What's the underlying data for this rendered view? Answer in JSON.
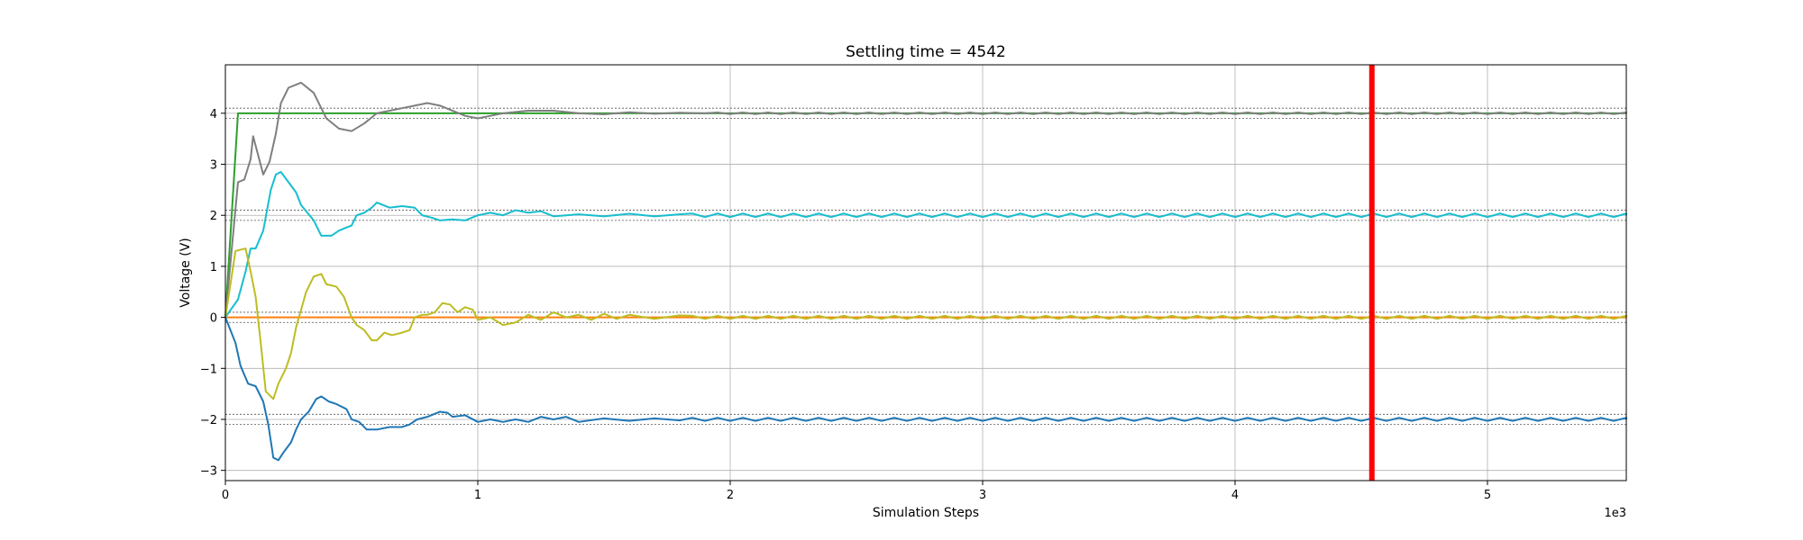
{
  "chart_data": {
    "type": "line",
    "title": "Settling time = 4542",
    "xlabel": "Simulation Steps",
    "ylabel": "Voltage (V)",
    "x_offset_label": "1e3",
    "xlim": [
      0,
      5.55
    ],
    "ylim": [
      -3.2,
      4.95
    ],
    "xticks": [
      0,
      1,
      2,
      3,
      4,
      5
    ],
    "xtick_labels": [
      "0",
      "1",
      "2",
      "3",
      "4",
      "5"
    ],
    "yticks": [
      -3,
      -2,
      -1,
      0,
      1,
      2,
      3,
      4
    ],
    "ytick_labels": [
      "−3",
      "−2",
      "−1",
      "0",
      "1",
      "2",
      "3",
      "4"
    ],
    "grid": true,
    "settling_time": 4.542,
    "settling_color": "#ff0000",
    "targets": [
      4,
      2,
      0,
      -2
    ],
    "tolerance_band": 0.1,
    "series": [
      {
        "color": "#2ca02c",
        "style": "step",
        "points": [
          [
            0,
            0
          ],
          [
            0.05,
            4
          ],
          [
            5.55,
            4
          ]
        ]
      },
      {
        "color": "#ff7f0e",
        "style": "step",
        "points": [
          [
            0,
            0
          ],
          [
            5.55,
            0
          ]
        ]
      },
      {
        "color": "#7f7f7f",
        "style": "oscillating",
        "points": [
          [
            0,
            0
          ],
          [
            0.05,
            2.65
          ],
          [
            0.075,
            2.7
          ],
          [
            0.1,
            3.1
          ],
          [
            0.11,
            3.55
          ],
          [
            0.15,
            2.8
          ],
          [
            0.175,
            3.05
          ],
          [
            0.2,
            3.6
          ],
          [
            0.22,
            4.2
          ],
          [
            0.25,
            4.5
          ],
          [
            0.3,
            4.6
          ],
          [
            0.35,
            4.4
          ],
          [
            0.4,
            3.9
          ],
          [
            0.45,
            3.7
          ],
          [
            0.5,
            3.65
          ],
          [
            0.55,
            3.8
          ],
          [
            0.6,
            4.0
          ],
          [
            0.7,
            4.1
          ],
          [
            0.75,
            4.15
          ],
          [
            0.8,
            4.2
          ],
          [
            0.85,
            4.15
          ],
          [
            0.9,
            4.05
          ],
          [
            0.95,
            3.95
          ],
          [
            1.0,
            3.9
          ],
          [
            1.05,
            3.95
          ],
          [
            1.1,
            4.0
          ],
          [
            1.2,
            4.05
          ],
          [
            1.3,
            4.05
          ],
          [
            1.4,
            4.0
          ],
          [
            1.5,
            3.98
          ],
          [
            1.6,
            4.02
          ],
          [
            1.7,
            3.99
          ],
          [
            1.8,
            4.01
          ],
          [
            1.9,
            4.0
          ],
          [
            5.55,
            4.0
          ]
        ],
        "settle_value": 4,
        "ripple": 0.015
      },
      {
        "color": "#17becf",
        "style": "oscillating",
        "points": [
          [
            0,
            0
          ],
          [
            0.05,
            0.35
          ],
          [
            0.08,
            0.9
          ],
          [
            0.1,
            1.35
          ],
          [
            0.12,
            1.35
          ],
          [
            0.15,
            1.7
          ],
          [
            0.18,
            2.5
          ],
          [
            0.2,
            2.8
          ],
          [
            0.22,
            2.85
          ],
          [
            0.25,
            2.65
          ],
          [
            0.28,
            2.45
          ],
          [
            0.3,
            2.2
          ],
          [
            0.35,
            1.9
          ],
          [
            0.38,
            1.6
          ],
          [
            0.42,
            1.6
          ],
          [
            0.45,
            1.7
          ],
          [
            0.5,
            1.8
          ],
          [
            0.52,
            2.0
          ],
          [
            0.55,
            2.05
          ],
          [
            0.58,
            2.15
          ],
          [
            0.6,
            2.25
          ],
          [
            0.65,
            2.15
          ],
          [
            0.7,
            2.18
          ],
          [
            0.75,
            2.15
          ],
          [
            0.78,
            2.0
          ],
          [
            0.82,
            1.95
          ],
          [
            0.85,
            1.9
          ],
          [
            0.9,
            1.92
          ],
          [
            0.95,
            1.9
          ],
          [
            1.0,
            2.0
          ],
          [
            1.05,
            2.05
          ],
          [
            1.1,
            2.0
          ],
          [
            1.15,
            2.1
          ],
          [
            1.2,
            2.05
          ],
          [
            1.25,
            2.08
          ],
          [
            1.3,
            1.98
          ],
          [
            1.4,
            2.02
          ],
          [
            1.5,
            1.98
          ],
          [
            1.6,
            2.03
          ],
          [
            1.7,
            1.98
          ],
          [
            1.8,
            2.02
          ],
          [
            5.55,
            2.0
          ]
        ],
        "settle_value": 2,
        "ripple": 0.035
      },
      {
        "color": "#bcbd22",
        "style": "oscillating",
        "points": [
          [
            0,
            0
          ],
          [
            0.04,
            1.3
          ],
          [
            0.08,
            1.35
          ],
          [
            0.1,
            0.9
          ],
          [
            0.12,
            0.4
          ],
          [
            0.14,
            -0.5
          ],
          [
            0.16,
            -1.45
          ],
          [
            0.19,
            -1.6
          ],
          [
            0.21,
            -1.3
          ],
          [
            0.24,
            -1.0
          ],
          [
            0.26,
            -0.7
          ],
          [
            0.28,
            -0.2
          ],
          [
            0.3,
            0.15
          ],
          [
            0.32,
            0.5
          ],
          [
            0.35,
            0.8
          ],
          [
            0.38,
            0.85
          ],
          [
            0.4,
            0.65
          ],
          [
            0.44,
            0.6
          ],
          [
            0.47,
            0.4
          ],
          [
            0.5,
            0.0
          ],
          [
            0.52,
            -0.15
          ],
          [
            0.55,
            -0.25
          ],
          [
            0.58,
            -0.45
          ],
          [
            0.6,
            -0.45
          ],
          [
            0.63,
            -0.3
          ],
          [
            0.66,
            -0.35
          ],
          [
            0.7,
            -0.3
          ],
          [
            0.73,
            -0.25
          ],
          [
            0.75,
            0.0
          ],
          [
            0.78,
            0.05
          ],
          [
            0.8,
            0.05
          ],
          [
            0.83,
            0.1
          ],
          [
            0.86,
            0.28
          ],
          [
            0.89,
            0.25
          ],
          [
            0.92,
            0.1
          ],
          [
            0.95,
            0.2
          ],
          [
            0.98,
            0.15
          ],
          [
            1.0,
            -0.05
          ],
          [
            1.05,
            0.0
          ],
          [
            1.1,
            -0.15
          ],
          [
            1.15,
            -0.1
          ],
          [
            1.2,
            0.05
          ],
          [
            1.25,
            -0.05
          ],
          [
            1.3,
            0.1
          ],
          [
            1.35,
            0.0
          ],
          [
            1.4,
            0.05
          ],
          [
            1.45,
            -0.05
          ],
          [
            1.5,
            0.07
          ],
          [
            1.55,
            -0.03
          ],
          [
            1.6,
            0.05
          ],
          [
            1.7,
            -0.03
          ],
          [
            1.8,
            0.04
          ],
          [
            5.55,
            0.0
          ]
        ],
        "settle_value": 0,
        "ripple": 0.03
      },
      {
        "color": "#1f77b4",
        "style": "oscillating",
        "points": [
          [
            0,
            0
          ],
          [
            0.04,
            -0.5
          ],
          [
            0.06,
            -0.95
          ],
          [
            0.09,
            -1.3
          ],
          [
            0.12,
            -1.35
          ],
          [
            0.15,
            -1.65
          ],
          [
            0.17,
            -2.1
          ],
          [
            0.19,
            -2.75
          ],
          [
            0.21,
            -2.8
          ],
          [
            0.23,
            -2.65
          ],
          [
            0.26,
            -2.45
          ],
          [
            0.28,
            -2.2
          ],
          [
            0.3,
            -2.0
          ],
          [
            0.33,
            -1.85
          ],
          [
            0.36,
            -1.6
          ],
          [
            0.38,
            -1.55
          ],
          [
            0.41,
            -1.65
          ],
          [
            0.44,
            -1.7
          ],
          [
            0.48,
            -1.8
          ],
          [
            0.5,
            -2.0
          ],
          [
            0.53,
            -2.05
          ],
          [
            0.56,
            -2.2
          ],
          [
            0.6,
            -2.2
          ],
          [
            0.65,
            -2.15
          ],
          [
            0.7,
            -2.15
          ],
          [
            0.73,
            -2.1
          ],
          [
            0.76,
            -2.0
          ],
          [
            0.8,
            -1.95
          ],
          [
            0.85,
            -1.85
          ],
          [
            0.88,
            -1.87
          ],
          [
            0.9,
            -1.95
          ],
          [
            0.95,
            -1.92
          ],
          [
            1.0,
            -2.05
          ],
          [
            1.05,
            -2.0
          ],
          [
            1.1,
            -2.05
          ],
          [
            1.15,
            -2.0
          ],
          [
            1.2,
            -2.05
          ],
          [
            1.25,
            -1.95
          ],
          [
            1.3,
            -2.0
          ],
          [
            1.35,
            -1.95
          ],
          [
            1.4,
            -2.05
          ],
          [
            1.5,
            -1.98
          ],
          [
            1.6,
            -2.03
          ],
          [
            1.7,
            -1.98
          ],
          [
            1.8,
            -2.02
          ],
          [
            5.55,
            -2.0
          ]
        ],
        "settle_value": -2,
        "ripple": 0.03
      }
    ]
  }
}
